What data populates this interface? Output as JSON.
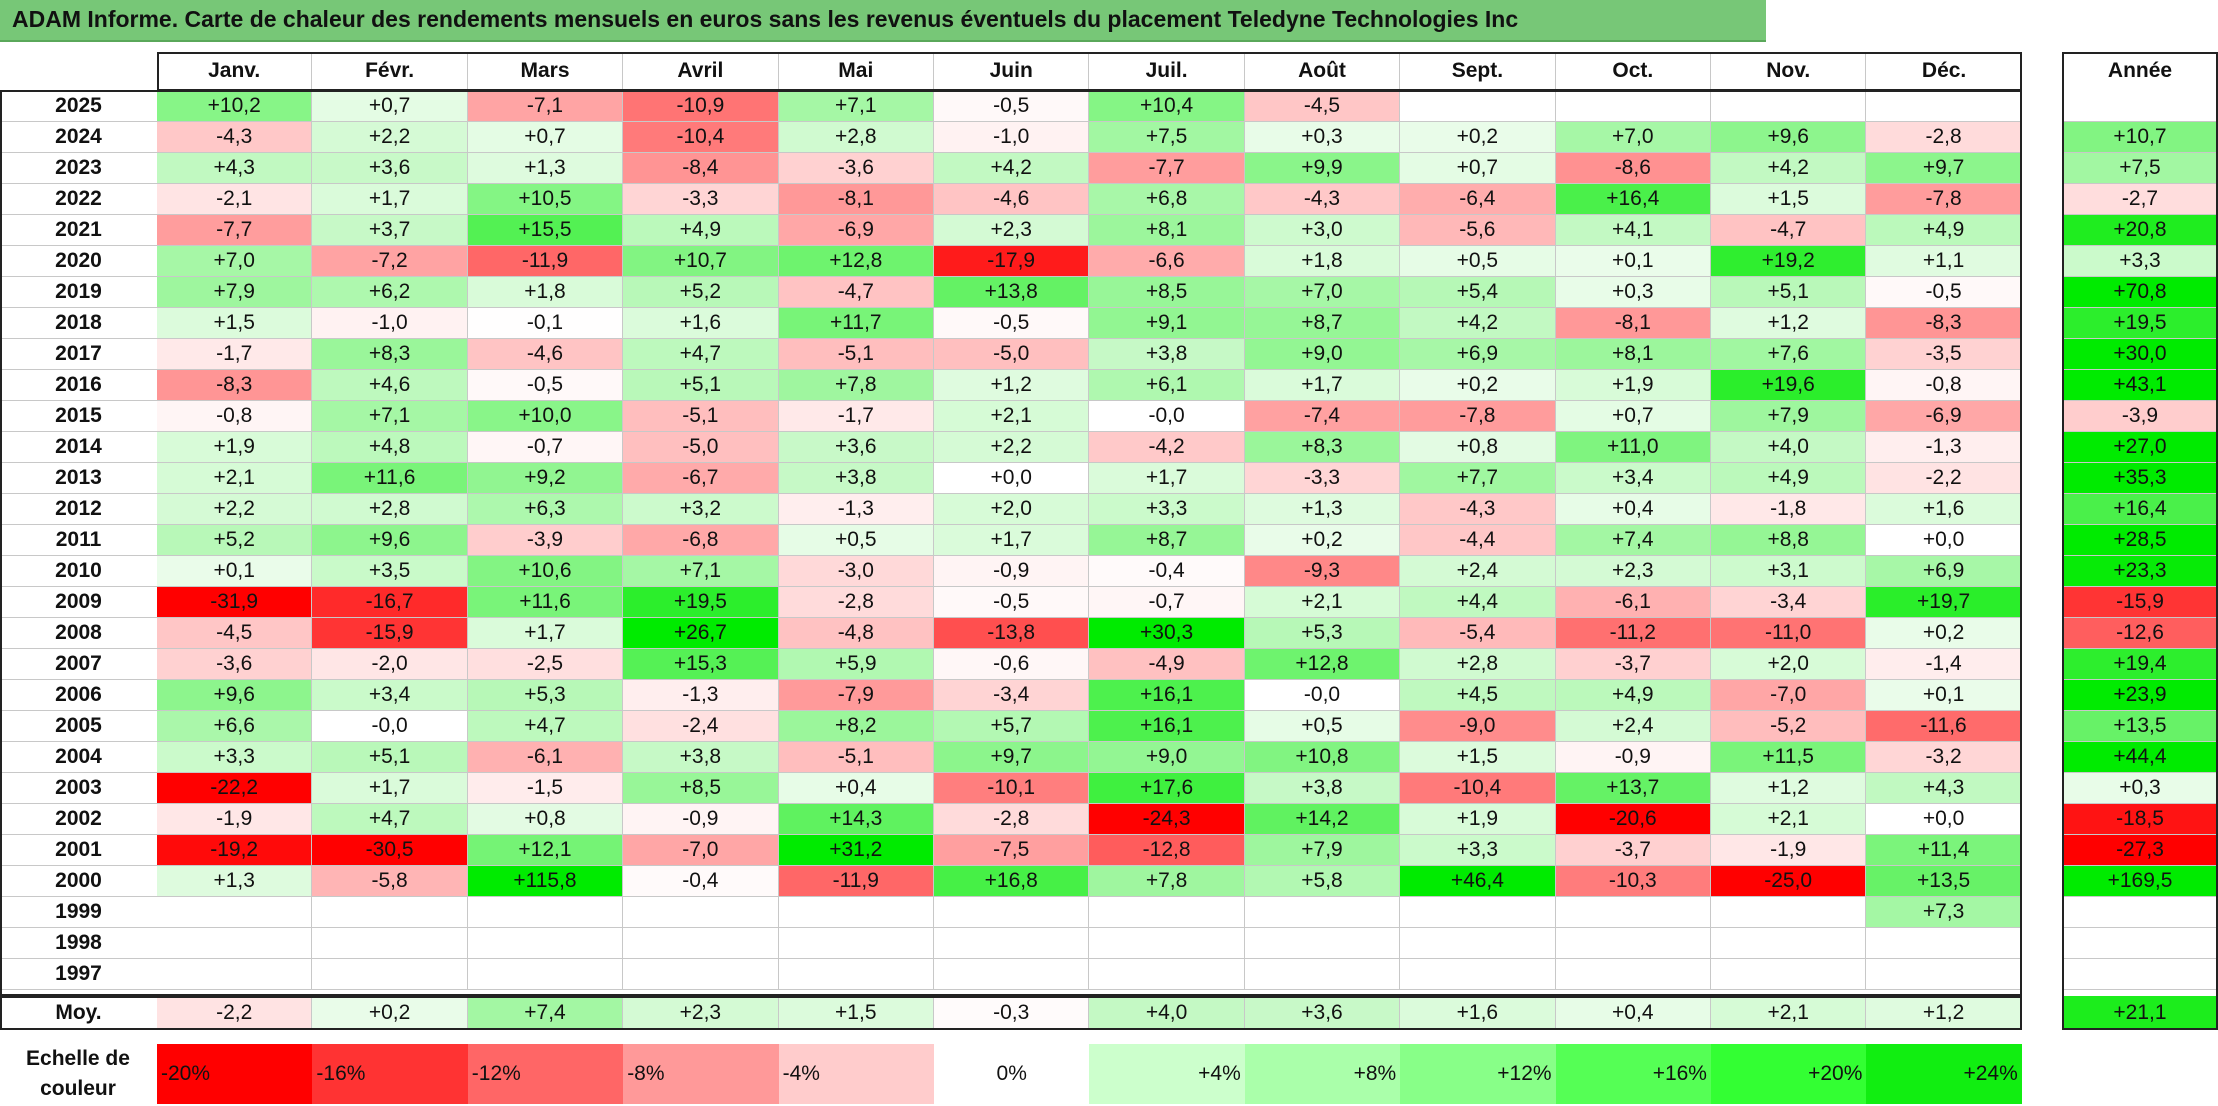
{
  "title": "ADAM Informe. Carte de chaleur des rendements mensuels en euros sans les revenus éventuels du placement Teledyne Technologies Inc",
  "chart_data": {
    "type": "heatmap",
    "title": "ADAM Informe. Carte de chaleur des rendements mensuels en euros sans les revenus éventuels du placement Teledyne Technologies Inc",
    "columns": [
      "Janv.",
      "Févr.",
      "Mars",
      "Avril",
      "Mai",
      "Juin",
      "Juil.",
      "Août",
      "Sept.",
      "Oct.",
      "Nov.",
      "Déc."
    ],
    "year_column_label": "Année",
    "rows": [
      {
        "year": "2025",
        "values": [
          "+10,2",
          "+0,7",
          "-7,1",
          "-10,9",
          "+7,1",
          "-0,5",
          "+10,4",
          "-4,5",
          "",
          "",
          "",
          ""
        ],
        "annual": ""
      },
      {
        "year": "2024",
        "values": [
          "-4,3",
          "+2,2",
          "+0,7",
          "-10,4",
          "+2,8",
          "-1,0",
          "+7,5",
          "+0,3",
          "+0,2",
          "+7,0",
          "+9,6",
          "-2,8"
        ],
        "annual": "+10,7"
      },
      {
        "year": "2023",
        "values": [
          "+4,3",
          "+3,6",
          "+1,3",
          "-8,4",
          "-3,6",
          "+4,2",
          "-7,7",
          "+9,9",
          "+0,7",
          "-8,6",
          "+4,2",
          "+9,7"
        ],
        "annual": "+7,5"
      },
      {
        "year": "2022",
        "values": [
          "-2,1",
          "+1,7",
          "+10,5",
          "-3,3",
          "-8,1",
          "-4,6",
          "+6,8",
          "-4,3",
          "-6,4",
          "+16,4",
          "+1,5",
          "-7,8"
        ],
        "annual": "-2,7"
      },
      {
        "year": "2021",
        "values": [
          "-7,7",
          "+3,7",
          "+15,5",
          "+4,9",
          "-6,9",
          "+2,3",
          "+8,1",
          "+3,0",
          "-5,6",
          "+4,1",
          "-4,7",
          "+4,9"
        ],
        "annual": "+20,8"
      },
      {
        "year": "2020",
        "values": [
          "+7,0",
          "-7,2",
          "-11,9",
          "+10,7",
          "+12,8",
          "-17,9",
          "-6,6",
          "+1,8",
          "+0,5",
          "+0,1",
          "+19,2",
          "+1,1"
        ],
        "annual": "+3,3"
      },
      {
        "year": "2019",
        "values": [
          "+7,9",
          "+6,2",
          "+1,8",
          "+5,2",
          "-4,7",
          "+13,8",
          "+8,5",
          "+7,0",
          "+5,4",
          "+0,3",
          "+5,1",
          "-0,5"
        ],
        "annual": "+70,8"
      },
      {
        "year": "2018",
        "values": [
          "+1,5",
          "-1,0",
          "-0,1",
          "+1,6",
          "+11,7",
          "-0,5",
          "+9,1",
          "+8,7",
          "+4,2",
          "-8,1",
          "+1,2",
          "-8,3"
        ],
        "annual": "+19,5"
      },
      {
        "year": "2017",
        "values": [
          "-1,7",
          "+8,3",
          "-4,6",
          "+4,7",
          "-5,1",
          "-5,0",
          "+3,8",
          "+9,0",
          "+6,9",
          "+8,1",
          "+7,6",
          "-3,5"
        ],
        "annual": "+30,0"
      },
      {
        "year": "2016",
        "values": [
          "-8,3",
          "+4,6",
          "-0,5",
          "+5,1",
          "+7,8",
          "+1,2",
          "+6,1",
          "+1,7",
          "+0,2",
          "+1,9",
          "+19,6",
          "-0,8"
        ],
        "annual": "+43,1"
      },
      {
        "year": "2015",
        "values": [
          "-0,8",
          "+7,1",
          "+10,0",
          "-5,1",
          "-1,7",
          "+2,1",
          "-0,0",
          "-7,4",
          "-7,8",
          "+0,7",
          "+7,9",
          "-6,9"
        ],
        "annual": "-3,9"
      },
      {
        "year": "2014",
        "values": [
          "+1,9",
          "+4,8",
          "-0,7",
          "-5,0",
          "+3,6",
          "+2,2",
          "-4,2",
          "+8,3",
          "+0,8",
          "+11,0",
          "+4,0",
          "-1,3"
        ],
        "annual": "+27,0"
      },
      {
        "year": "2013",
        "values": [
          "+2,1",
          "+11,6",
          "+9,2",
          "-6,7",
          "+3,8",
          "+0,0",
          "+1,7",
          "-3,3",
          "+7,7",
          "+3,4",
          "+4,9",
          "-2,2"
        ],
        "annual": "+35,3"
      },
      {
        "year": "2012",
        "values": [
          "+2,2",
          "+2,8",
          "+6,3",
          "+3,2",
          "-1,3",
          "+2,0",
          "+3,3",
          "+1,3",
          "-4,3",
          "+0,4",
          "-1,8",
          "+1,6"
        ],
        "annual": "+16,4"
      },
      {
        "year": "2011",
        "values": [
          "+5,2",
          "+9,6",
          "-3,9",
          "-6,8",
          "+0,5",
          "+1,7",
          "+8,7",
          "+0,2",
          "-4,4",
          "+7,4",
          "+8,8",
          "+0,0"
        ],
        "annual": "+28,5"
      },
      {
        "year": "2010",
        "values": [
          "+0,1",
          "+3,5",
          "+10,6",
          "+7,1",
          "-3,0",
          "-0,9",
          "-0,4",
          "-9,3",
          "+2,4",
          "+2,3",
          "+3,1",
          "+6,9"
        ],
        "annual": "+23,3"
      },
      {
        "year": "2009",
        "values": [
          "-31,9",
          "-16,7",
          "+11,6",
          "+19,5",
          "-2,8",
          "-0,5",
          "-0,7",
          "+2,1",
          "+4,4",
          "-6,1",
          "-3,4",
          "+19,7"
        ],
        "annual": "-15,9"
      },
      {
        "year": "2008",
        "values": [
          "-4,5",
          "-15,9",
          "+1,7",
          "+26,7",
          "-4,8",
          "-13,8",
          "+30,3",
          "+5,3",
          "-5,4",
          "-11,2",
          "-11,0",
          "+0,2"
        ],
        "annual": "-12,6"
      },
      {
        "year": "2007",
        "values": [
          "-3,6",
          "-2,0",
          "-2,5",
          "+15,3",
          "+5,9",
          "-0,6",
          "-4,9",
          "+12,8",
          "+2,8",
          "-3,7",
          "+2,0",
          "-1,4"
        ],
        "annual": "+19,4"
      },
      {
        "year": "2006",
        "values": [
          "+9,6",
          "+3,4",
          "+5,3",
          "-1,3",
          "-7,9",
          "-3,4",
          "+16,1",
          "-0,0",
          "+4,5",
          "+4,9",
          "-7,0",
          "+0,1"
        ],
        "annual": "+23,9"
      },
      {
        "year": "2005",
        "values": [
          "+6,6",
          "-0,0",
          "+4,7",
          "-2,4",
          "+8,2",
          "+5,7",
          "+16,1",
          "+0,5",
          "-9,0",
          "+2,4",
          "-5,2",
          "-11,6"
        ],
        "annual": "+13,5"
      },
      {
        "year": "2004",
        "values": [
          "+3,3",
          "+5,1",
          "-6,1",
          "+3,8",
          "-5,1",
          "+9,7",
          "+9,0",
          "+10,8",
          "+1,5",
          "-0,9",
          "+11,5",
          "-3,2"
        ],
        "annual": "+44,4"
      },
      {
        "year": "2003",
        "values": [
          "-22,2",
          "+1,7",
          "-1,5",
          "+8,5",
          "+0,4",
          "-10,1",
          "+17,6",
          "+3,8",
          "-10,4",
          "+13,7",
          "+1,2",
          "+4,3"
        ],
        "annual": "+0,3"
      },
      {
        "year": "2002",
        "values": [
          "-1,9",
          "+4,7",
          "+0,8",
          "-0,9",
          "+14,3",
          "-2,8",
          "-24,3",
          "+14,2",
          "+1,9",
          "-20,6",
          "+2,1",
          "+0,0"
        ],
        "annual": "-18,5"
      },
      {
        "year": "2001",
        "values": [
          "-19,2",
          "-30,5",
          "+12,1",
          "-7,0",
          "+31,2",
          "-7,5",
          "-12,8",
          "+7,9",
          "+3,3",
          "-3,7",
          "-1,9",
          "+11,4"
        ],
        "annual": "-27,3"
      },
      {
        "year": "2000",
        "values": [
          "+1,3",
          "-5,8",
          "+115,8",
          "-0,4",
          "-11,9",
          "+16,8",
          "+7,8",
          "+5,8",
          "+46,4",
          "-10,3",
          "-25,0",
          "+13,5"
        ],
        "annual": "+169,5"
      },
      {
        "year": "1999",
        "values": [
          "",
          "",
          "",
          "",
          "",
          "",
          "",
          "",
          "",
          "",
          "",
          "+7,3"
        ],
        "annual": ""
      },
      {
        "year": "1998",
        "values": [
          "",
          "",
          "",
          "",
          "",
          "",
          "",
          "",
          "",
          "",
          "",
          ""
        ],
        "annual": ""
      },
      {
        "year": "1997",
        "values": [
          "",
          "",
          "",
          "",
          "",
          "",
          "",
          "",
          "",
          "",
          "",
          ""
        ],
        "annual": ""
      }
    ],
    "average": {
      "label": "Moy.",
      "values": [
        "-2,2",
        "+0,2",
        "+7,4",
        "+2,3",
        "+1,5",
        "-0,3",
        "+4,0",
        "+3,6",
        "+1,6",
        "+0,4",
        "+2,1",
        "+1,2"
      ],
      "annual": "+21,1"
    },
    "scale": {
      "label_line1": "Echelle de",
      "label_line2": "couleur",
      "steps": [
        {
          "label": "-20%",
          "value": -20,
          "color": "#ff0000"
        },
        {
          "label": "-16%",
          "value": -16,
          "color": "#ff3333"
        },
        {
          "label": "-12%",
          "value": -12,
          "color": "#ff6666"
        },
        {
          "label": "-8%",
          "value": -8,
          "color": "#ff9999"
        },
        {
          "label": "-4%",
          "value": -4,
          "color": "#ffcccc"
        },
        {
          "label": "0%",
          "value": 0,
          "color": "#ffffff"
        },
        {
          "label": "+4%",
          "value": 4,
          "color": "#ccffcc"
        },
        {
          "label": "+8%",
          "value": 8,
          "color": "#aaffaa"
        },
        {
          "label": "+12%",
          "value": 12,
          "color": "#88ff88"
        },
        {
          "label": "+16%",
          "value": 16,
          "color": "#55ff55"
        },
        {
          "label": "+20%",
          "value": 20,
          "color": "#33ff33"
        },
        {
          "label": "+24%",
          "value": 24,
          "color": "#11ee11"
        }
      ]
    }
  }
}
